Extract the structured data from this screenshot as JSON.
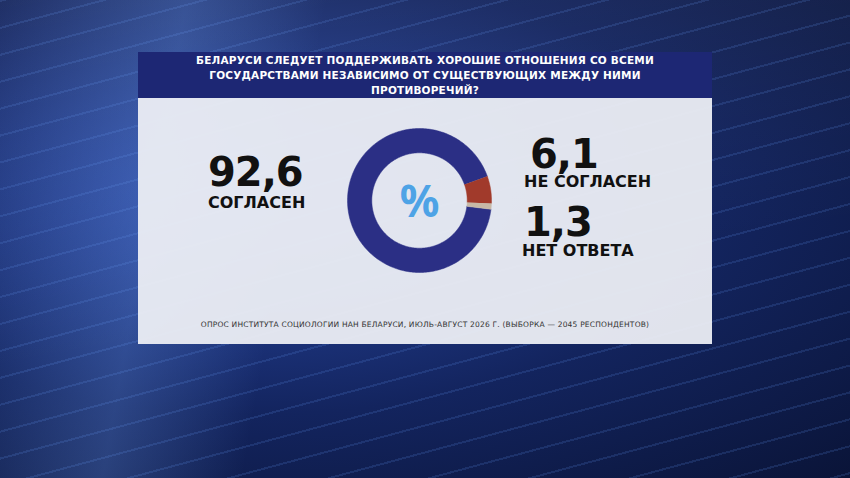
{
  "chart_data": {
    "type": "donut",
    "title": "БЕЛАРУСИ СЛЕДУЕТ ПОДДЕРЖИВАТЬ ХОРОШИЕ ОТНОШЕНИЯ СО ВСЕМИ ГОСУДАРСТВАМИ НЕЗАВИСИМО ОТ СУЩЕСТВУЮЩИХ МЕЖДУ НИМИ ПРОТИВОРЕЧИЙ?",
    "categories": [
      "СОГЛАСЕН",
      "НЕ СОГЛАСЕН",
      "НЕТ ОТВЕТА"
    ],
    "values": [
      92.6,
      6.1,
      1.3
    ],
    "value_labels": [
      "92,6",
      "6,1",
      "1,3"
    ],
    "colors": [
      "#2b2f85",
      "#a13a2b",
      "#c7b8a6"
    ],
    "data_labels": true,
    "annotation": "%",
    "caption": "ОПРОС ИНСТИТУТА СОЦИОЛОГИИ НАН БЕЛАРУСИ, ИЮЛЬ-АВГУСТ 2026 Г. (ВЫБОРКА — 2045 РЕСПОНДЕНТОВ)"
  }
}
